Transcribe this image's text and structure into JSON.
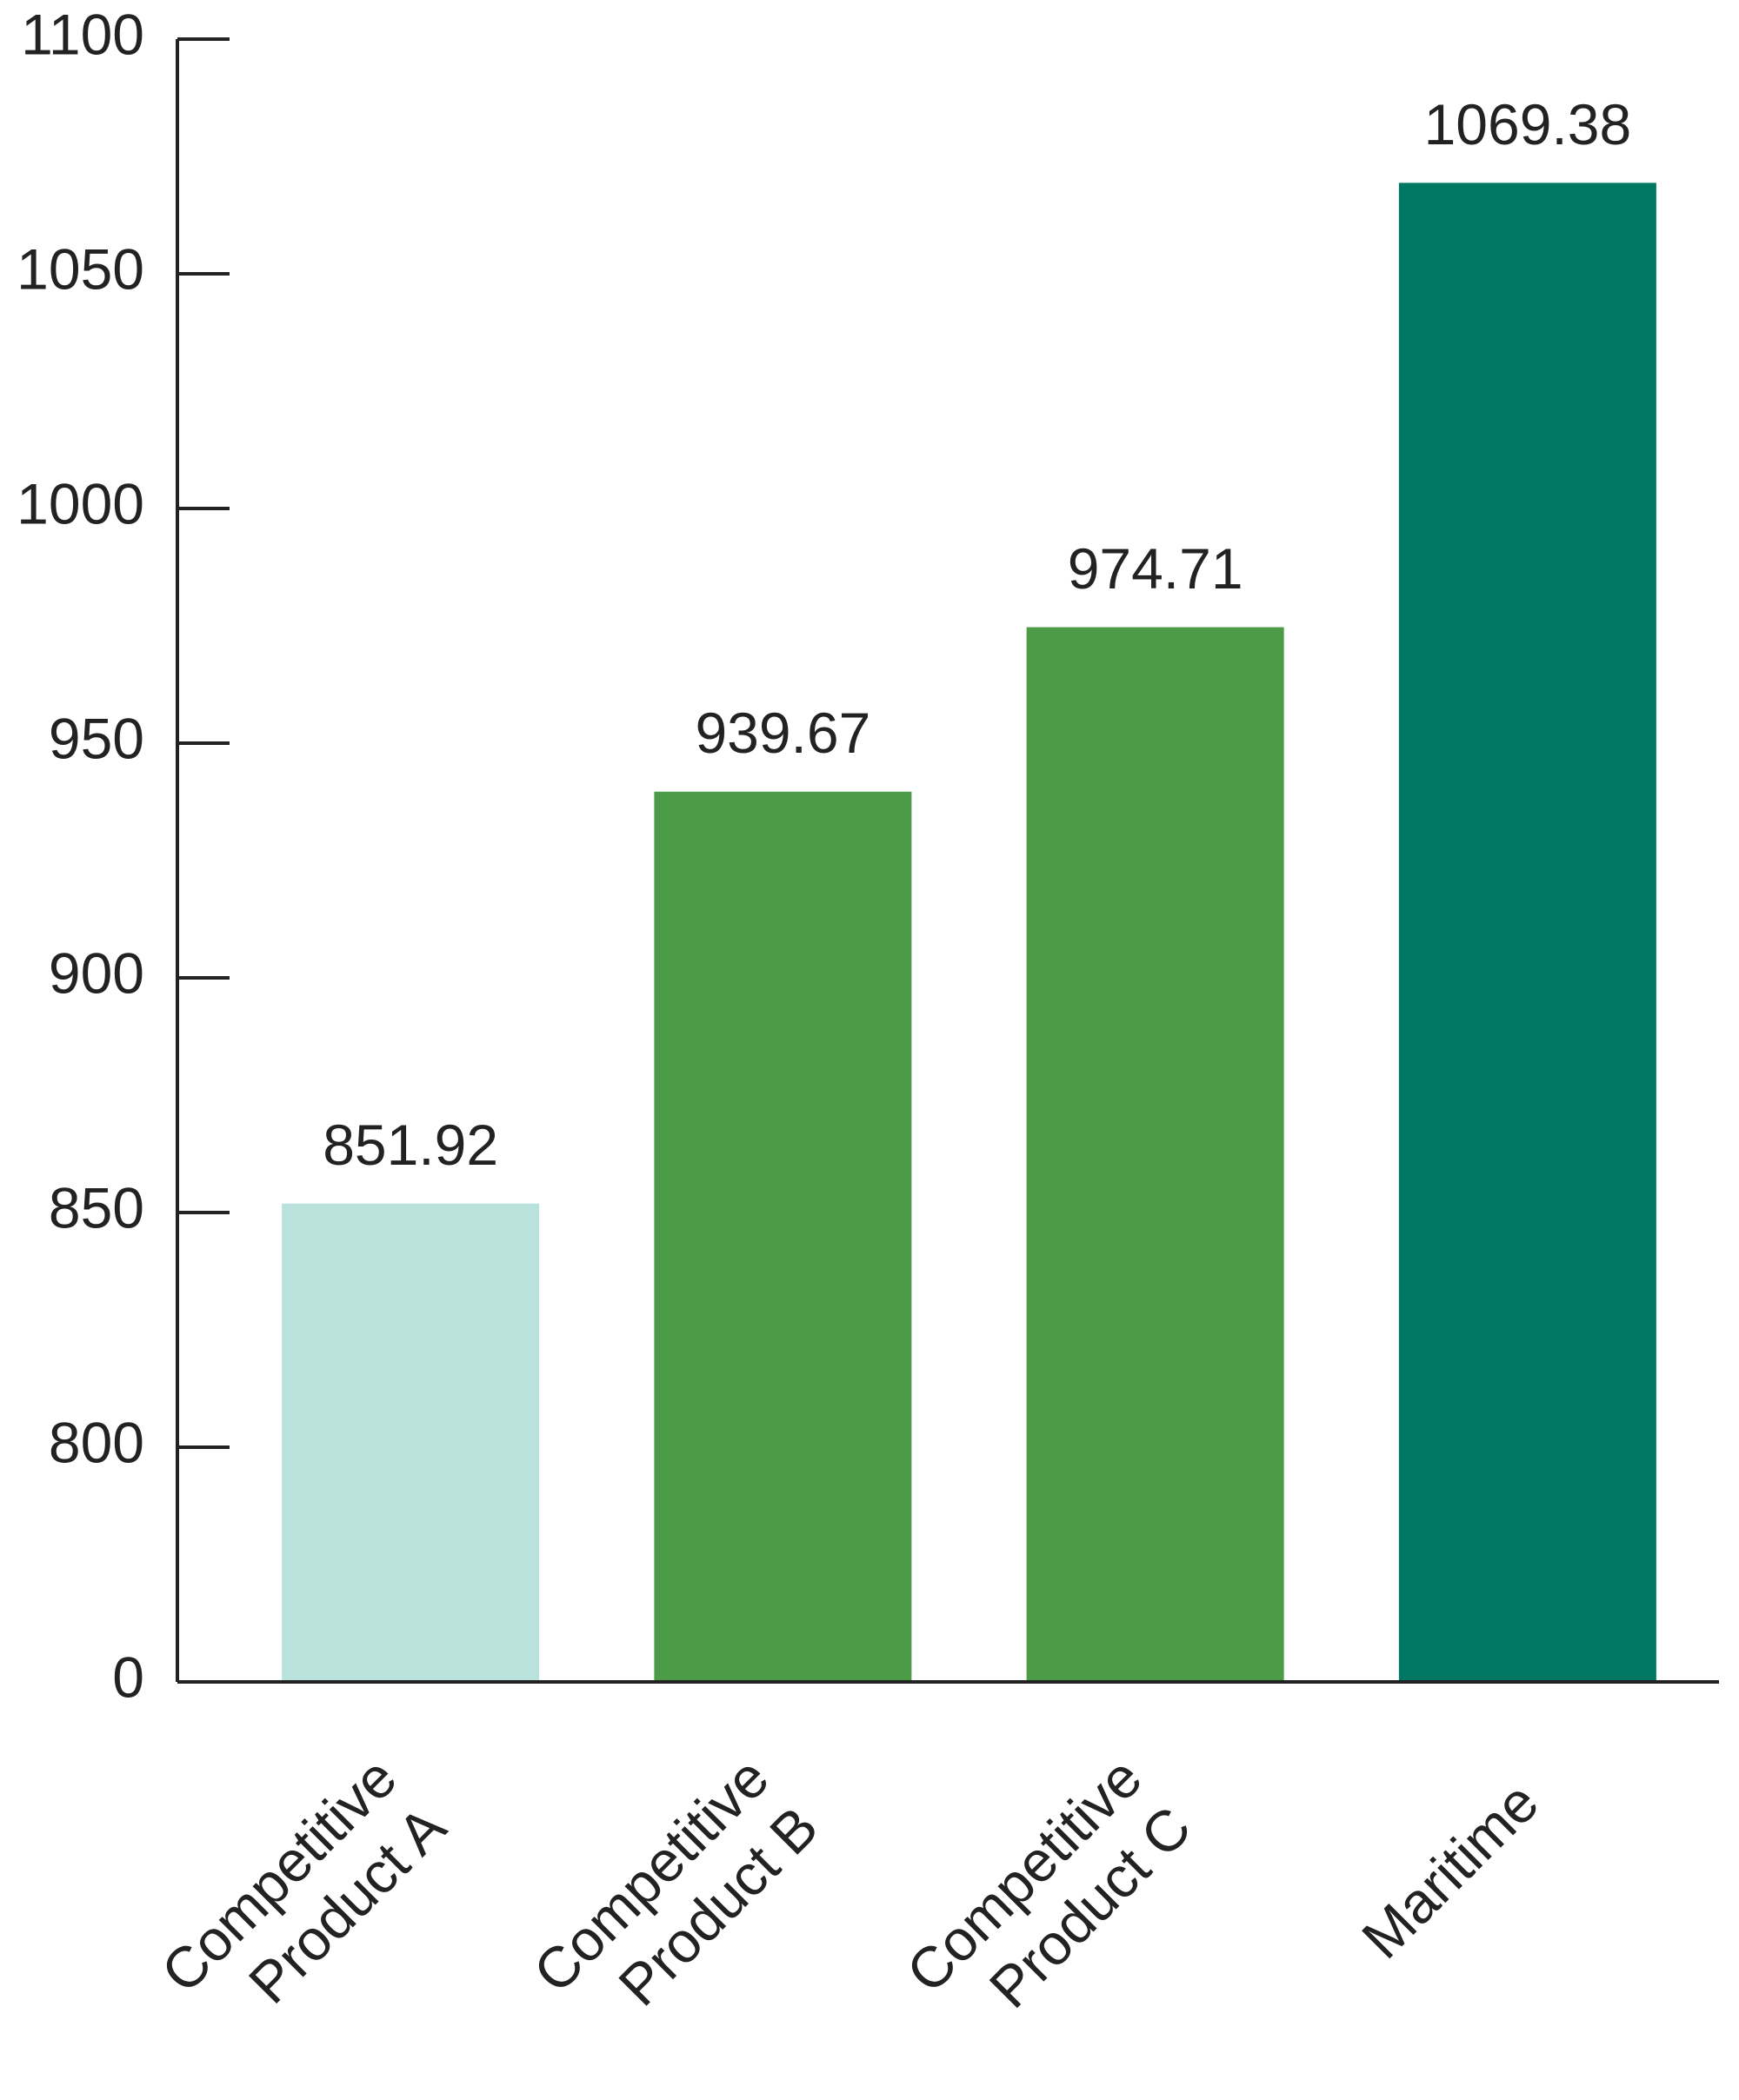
{
  "chart_data": {
    "type": "bar",
    "categories": [
      "Competitive Product A",
      "Competitive Product B",
      "Competitive Product C",
      "Maritime"
    ],
    "values": [
      851.92,
      939.67,
      974.71,
      1069.38
    ],
    "colors": [
      "#b9e2dc",
      "#4c9b47",
      "#4c9b47",
      "#007763"
    ],
    "ylim": [
      0,
      1100
    ],
    "yticks": [
      0,
      800,
      850,
      900,
      950,
      1000,
      1050,
      1100
    ]
  }
}
